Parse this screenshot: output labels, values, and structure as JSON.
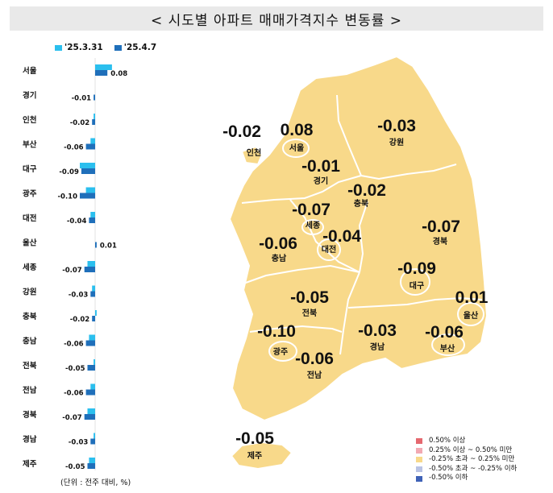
{
  "title": "< 시도별 아파트 매매가격지수 변동률 >",
  "legend": [
    {
      "label": "'25.3.31",
      "color": "#2bbfee"
    },
    {
      "label": "'25.4.7",
      "color": "#1f6fba"
    }
  ],
  "unit_note": "(단위 : 전주 대비, %)",
  "chart_data": {
    "type": "bar",
    "orientation": "horizontal",
    "categories": [
      "서울",
      "경기",
      "인천",
      "부산",
      "대구",
      "광주",
      "대전",
      "울산",
      "세종",
      "강원",
      "충북",
      "충남",
      "전북",
      "전남",
      "경북",
      "경남",
      "제주"
    ],
    "series": [
      {
        "name": "'25.3.31",
        "values": [
          0.11,
          0.0,
          -0.01,
          -0.03,
          -0.1,
          -0.06,
          -0.03,
          0.0,
          -0.05,
          -0.02,
          0.01,
          -0.04,
          -0.01,
          -0.03,
          -0.05,
          -0.01,
          -0.04
        ],
        "color": "#2bbfee"
      },
      {
        "name": "'25.4.7",
        "values": [
          0.08,
          -0.01,
          -0.02,
          -0.06,
          -0.09,
          -0.1,
          -0.04,
          0.01,
          -0.07,
          -0.03,
          -0.02,
          -0.06,
          -0.05,
          -0.06,
          -0.07,
          -0.03,
          -0.05
        ],
        "color": "#1f6fba"
      }
    ],
    "data_labels": [
      "0.08",
      "-0.01",
      "-0.02",
      "-0.06",
      "-0.09",
      "-0.10",
      "-0.04",
      "0.01",
      "-0.07",
      "-0.03",
      "-0.02",
      "-0.06",
      "-0.05",
      "-0.06",
      "-0.07",
      "-0.03",
      "-0.05"
    ]
  },
  "map": {
    "fill_color": "#f8d98a",
    "regions": [
      {
        "name": "인천",
        "value": "-0.02"
      },
      {
        "name": "서울",
        "value": "0.08"
      },
      {
        "name": "강원",
        "value": "-0.03"
      },
      {
        "name": "경기",
        "value": "-0.01"
      },
      {
        "name": "충북",
        "value": "-0.02"
      },
      {
        "name": "세종",
        "value": "-0.07"
      },
      {
        "name": "경북",
        "value": "-0.07"
      },
      {
        "name": "충남",
        "value": "-0.06"
      },
      {
        "name": "대전",
        "value": "-0.04"
      },
      {
        "name": "대구",
        "value": "-0.09"
      },
      {
        "name": "전북",
        "value": "-0.05"
      },
      {
        "name": "울산",
        "value": "0.01"
      },
      {
        "name": "광주",
        "value": "-0.10"
      },
      {
        "name": "경남",
        "value": "-0.03"
      },
      {
        "name": "부산",
        "value": "-0.06"
      },
      {
        "name": "전남",
        "value": "-0.06"
      },
      {
        "name": "제주",
        "value": "-0.05"
      }
    ],
    "legend": [
      {
        "label": "0.50% 이상",
        "color": "#e5686f"
      },
      {
        "label": "0.25% 이상 ~ 0.50% 미만",
        "color": "#f2a9b2"
      },
      {
        "label": "-0.25% 초과 ~ 0.25% 미만",
        "color": "#f8d98a"
      },
      {
        "label": "-0.50% 초과 ~ -0.25% 이하",
        "color": "#b9c3e4"
      },
      {
        "label": "-0.50% 이하",
        "color": "#3f62b7"
      }
    ]
  }
}
